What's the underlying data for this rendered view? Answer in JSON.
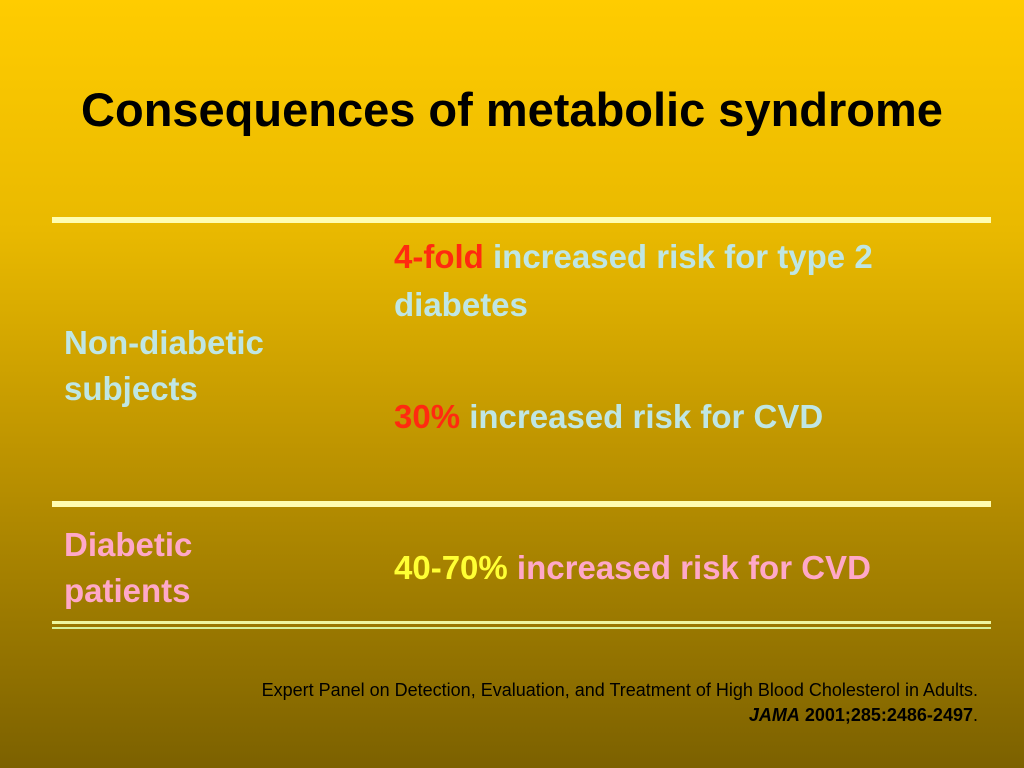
{
  "slide": {
    "title": "Consequences of metabolic syndrome",
    "rows": [
      {
        "label_line1": "Non-diabetic",
        "label_line2": "subjects",
        "risks": [
          {
            "value": "4-fold",
            "text": " increased risk for type 2 diabetes"
          },
          {
            "value": "30%",
            "text": " increased risk for CVD"
          }
        ]
      },
      {
        "label_line1": "Diabetic",
        "label_line2": "patients",
        "risks": [
          {
            "value": "40-70%",
            "text": " increased risk for CVD"
          }
        ]
      }
    ],
    "citation": {
      "line1": "Expert Panel on Detection, Evaluation, and Treatment of High Blood Cholesterol in Adults.",
      "journal": "JAMA",
      "reference": " 2001;285:2486-2497",
      "end": "."
    }
  },
  "colors": {
    "title": "#000000",
    "highlight_red": "#ff2a10",
    "highlight_yellow": "#ffff33",
    "text_blue": "#bfe6e4",
    "text_pink": "#ffa8c8",
    "rules": "#fffdb0"
  }
}
